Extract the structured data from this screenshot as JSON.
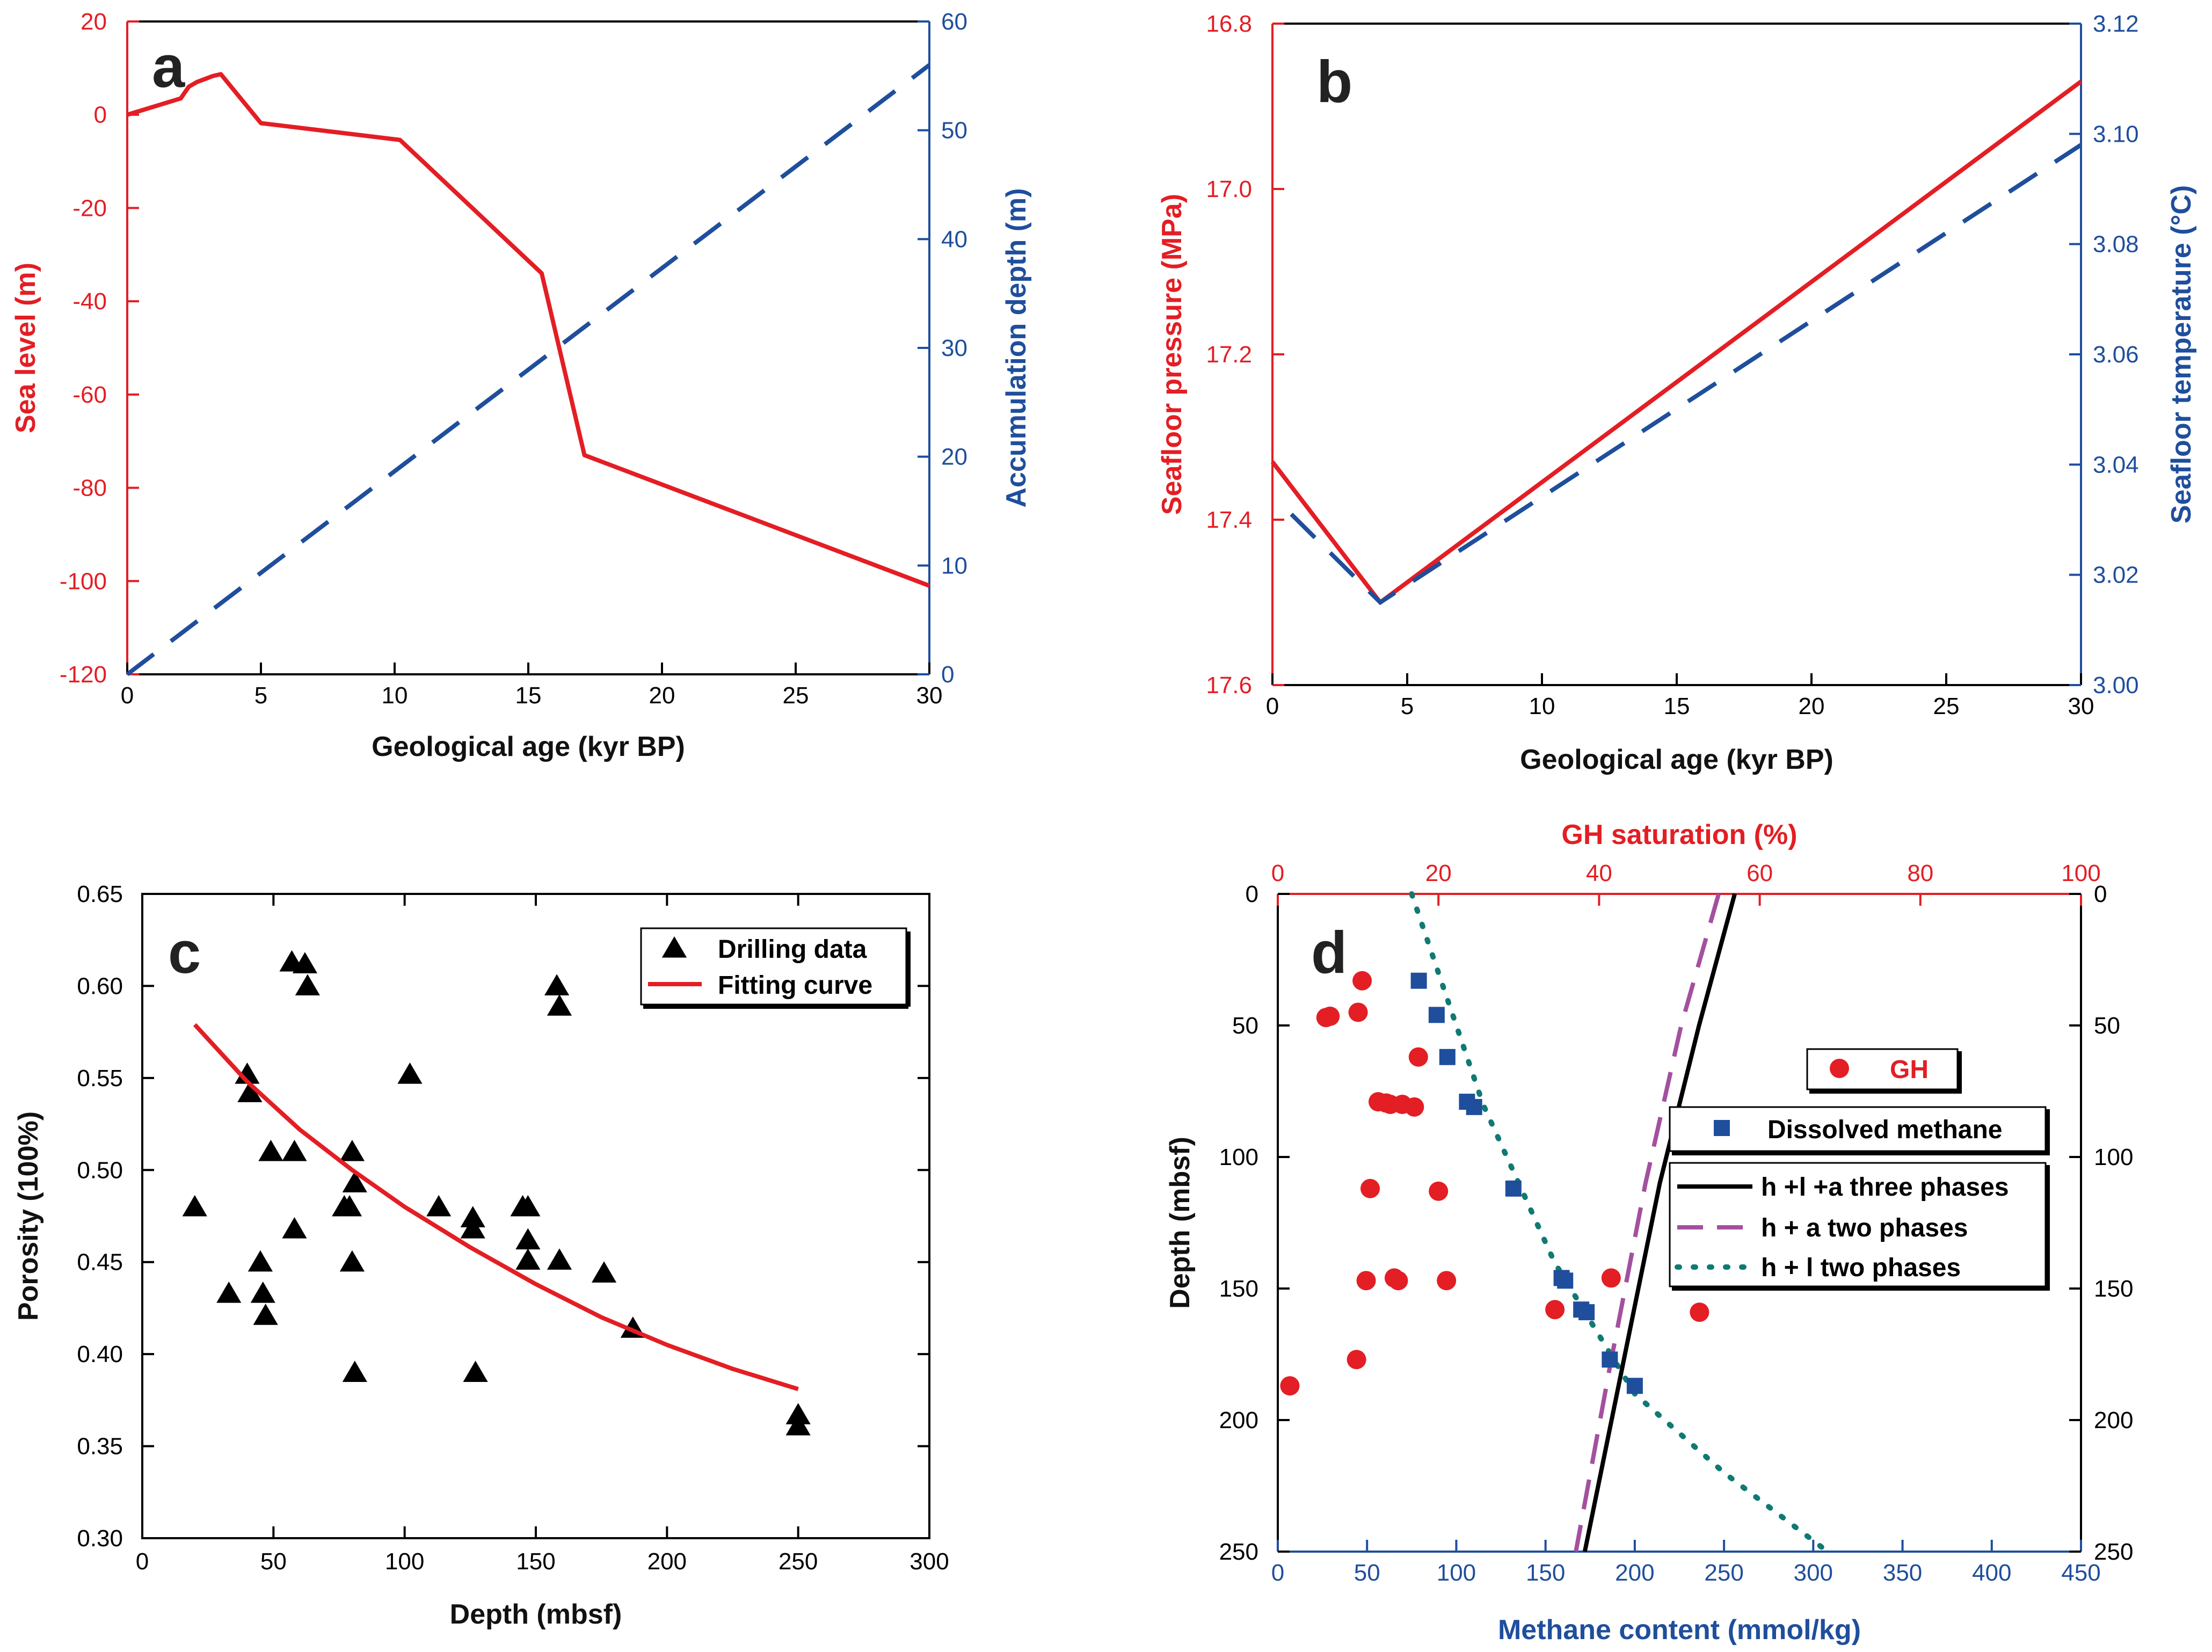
{
  "colors": {
    "red": "#e31e24",
    "blue": "#1f4e9c",
    "black": "#000000",
    "purple": "#a3509f",
    "teal": "#0f7a73"
  },
  "chart_data": [
    {
      "type": "line",
      "panel": "a",
      "xlabel": "Geological age (kyr BP)",
      "ylabel": "Sea level (m)",
      "y2label": "Accumulation depth (m)",
      "xlim": [
        0,
        30
      ],
      "ylim": [
        -120,
        20
      ],
      "y2lim": [
        0,
        60
      ],
      "xticks": [
        0,
        5,
        10,
        15,
        20,
        25,
        30
      ],
      "yticks": [
        -120,
        -100,
        -80,
        -60,
        -40,
        -20,
        0,
        20
      ],
      "y2ticks": [
        0,
        10,
        20,
        30,
        40,
        50,
        60
      ],
      "series": [
        {
          "name": "Sea level",
          "axis": "left",
          "style": "solid",
          "color": "red",
          "x": [
            0,
            2,
            2.3,
            2.6,
            3.2,
            3.5,
            5,
            10.2,
            15.5,
            17.1,
            30
          ],
          "y": [
            0,
            3.5,
            6,
            7,
            8.3,
            8.7,
            -1.8,
            -5.4,
            -34,
            -73,
            -101
          ]
        },
        {
          "name": "Accumulation depth",
          "axis": "right",
          "style": "dashed",
          "color": "blue",
          "x": [
            0,
            30
          ],
          "y": [
            0,
            56
          ]
        }
      ]
    },
    {
      "type": "line",
      "panel": "b",
      "xlabel": "Geological age (kyr BP)",
      "ylabel": "Seafloor pressure (MPa)",
      "y2label": "Seafloor temperature (°C)",
      "xlim": [
        0,
        30
      ],
      "ylim": [
        17.6,
        16.8
      ],
      "y2lim": [
        3.0,
        3.12
      ],
      "xticks": [
        0,
        5,
        10,
        15,
        20,
        25,
        30
      ],
      "yticks": [
        "16.8",
        "17.0",
        "17.2",
        "17.4",
        "17.6"
      ],
      "y2ticks": [
        "3.00",
        "3.02",
        "3.04",
        "3.06",
        "3.08",
        "3.10",
        "3.12"
      ],
      "series": [
        {
          "name": "Seafloor pressure",
          "axis": "left",
          "style": "solid",
          "color": "red",
          "x": [
            0,
            4,
            30
          ],
          "y": [
            17.33,
            17.5,
            16.87
          ]
        },
        {
          "name": "Seafloor temperature",
          "axis": "right",
          "style": "dashed",
          "color": "blue",
          "x": [
            0.7,
            4,
            30
          ],
          "y": [
            3.031,
            3.015,
            3.098
          ]
        }
      ]
    },
    {
      "type": "scatter",
      "panel": "c",
      "xlabel": "Depth (mbsf)",
      "ylabel": "Porosity (100%)",
      "xlim": [
        0,
        300
      ],
      "ylim": [
        0.3,
        0.65
      ],
      "xticks": [
        0,
        50,
        100,
        150,
        200,
        250,
        300
      ],
      "yticks": [
        "0.30",
        "0.35",
        "0.40",
        "0.45",
        "0.50",
        "0.55",
        "0.60",
        "0.65"
      ],
      "legend": [
        "Drilling data",
        "Fitting curve"
      ],
      "series": [
        {
          "name": "Drilling data",
          "marker": "triangle",
          "color": "black",
          "points": [
            [
              20,
              0.48
            ],
            [
              33,
              0.433
            ],
            [
              40,
              0.552
            ],
            [
              41,
              0.542
            ],
            [
              45,
              0.45
            ],
            [
              46,
              0.433
            ],
            [
              47,
              0.421
            ],
            [
              49,
              0.51
            ],
            [
              57,
              0.613
            ],
            [
              58,
              0.51
            ],
            [
              58,
              0.468
            ],
            [
              62,
              0.612
            ],
            [
              63,
              0.6
            ],
            [
              77,
              0.48
            ],
            [
              79,
              0.48
            ],
            [
              80,
              0.51
            ],
            [
              80,
              0.45
            ],
            [
              81,
              0.493
            ],
            [
              81,
              0.39
            ],
            [
              102,
              0.552
            ],
            [
              113,
              0.48
            ],
            [
              126,
              0.468
            ],
            [
              126,
              0.474
            ],
            [
              127,
              0.39
            ],
            [
              145,
              0.48
            ],
            [
              147,
              0.48
            ],
            [
              147,
              0.451
            ],
            [
              147,
              0.462
            ],
            [
              158,
              0.6
            ],
            [
              159,
              0.451
            ],
            [
              159,
              0.589
            ],
            [
              176,
              0.444
            ],
            [
              187,
              0.414
            ],
            [
              250,
              0.367
            ],
            [
              250,
              0.361
            ]
          ]
        },
        {
          "name": "Fitting curve",
          "style": "solid",
          "color": "red",
          "x": [
            20,
            40,
            60,
            80,
            100,
            125,
            150,
            175,
            200,
            225,
            250
          ],
          "y": [
            0.579,
            0.548,
            0.522,
            0.5,
            0.48,
            0.458,
            0.438,
            0.42,
            0.405,
            0.392,
            0.381
          ]
        }
      ]
    },
    {
      "type": "scatter",
      "panel": "d",
      "xlabel": "Methane content (mmol/kg)",
      "x2label": "GH saturation (%)",
      "ylabel": "Depth (mbsf)",
      "xlim": [
        0,
        450
      ],
      "x2lim": [
        0,
        100
      ],
      "ylim": [
        0,
        250
      ],
      "xticks": [
        0,
        50,
        100,
        150,
        200,
        250,
        300,
        350,
        400,
        450
      ],
      "x2ticks": [
        0,
        20,
        40,
        60,
        80,
        100
      ],
      "yticks": [
        0,
        50,
        100,
        150,
        200,
        250
      ],
      "legend": [
        "GH",
        "Dissolved methane",
        "h +l +a three phases",
        "h + a two phases",
        "h + l two phases"
      ],
      "series": [
        {
          "name": "GH",
          "axis": "top",
          "marker": "circle",
          "color": "red",
          "points": [
            [
              1.5,
              187
            ],
            [
              6,
              47
            ],
            [
              6.5,
              46.5
            ],
            [
              10,
              45
            ],
            [
              10.5,
              33
            ],
            [
              9.8,
              177
            ],
            [
              11,
              147
            ],
            [
              11.5,
              112
            ],
            [
              12.5,
              79
            ],
            [
              13.5,
              79.5
            ],
            [
              14,
              80
            ],
            [
              14.5,
              146
            ],
            [
              15,
              147
            ],
            [
              15.5,
              80
            ],
            [
              17,
              81
            ],
            [
              17.5,
              62
            ],
            [
              20,
              113
            ],
            [
              21,
              147
            ],
            [
              34.5,
              158
            ],
            [
              41.5,
              146
            ],
            [
              52.5,
              159
            ]
          ]
        },
        {
          "name": "Dissolved methane",
          "axis": "bottom",
          "marker": "square",
          "color": "blue",
          "points": [
            [
              79,
              33
            ],
            [
              89,
              46
            ],
            [
              95,
              62
            ],
            [
              106,
              79
            ],
            [
              110,
              81
            ],
            [
              132,
              112
            ],
            [
              159,
              146
            ],
            [
              161,
              147
            ],
            [
              170,
              158
            ],
            [
              173,
              159
            ],
            [
              186,
              177
            ],
            [
              200,
              187
            ]
          ]
        },
        {
          "name": "h +l +a three phases",
          "axis": "bottom",
          "style": "solid",
          "color": "black",
          "x": [
            256,
            236,
            214,
            190,
            172
          ],
          "y": [
            0,
            50,
            110,
            190,
            250
          ]
        },
        {
          "name": "h + a two phases",
          "axis": "bottom",
          "style": "dashed",
          "color": "purple",
          "x": [
            247,
            226,
            206,
            186,
            167
          ],
          "y": [
            0,
            50,
            110,
            180,
            250
          ]
        },
        {
          "name": "h + l two phases",
          "axis": "bottom",
          "style": "dotted",
          "color": "teal",
          "x": [
            75,
            115,
            155,
            200,
            250,
            308
          ],
          "y": [
            0,
            80,
            140,
            190,
            220,
            250
          ]
        }
      ]
    }
  ]
}
